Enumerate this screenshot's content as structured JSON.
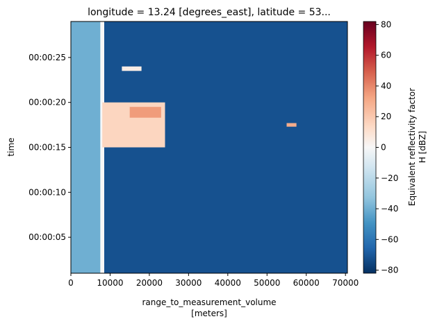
{
  "chart_data": {
    "type": "heatmap",
    "title": "longitude = 13.24 [degrees_east], latitude = 53...",
    "xlabel": "range_to_measurement_volume",
    "xlabel_units": "[meters]",
    "ylabel": "time",
    "xlim": [
      0,
      70500
    ],
    "ylim": [
      "00:00:01",
      "00:00:29"
    ],
    "x_ticks": [
      0,
      10000,
      20000,
      30000,
      40000,
      50000,
      60000,
      70000
    ],
    "y_ticks": [
      "00:00:05",
      "00:00:10",
      "00:00:15",
      "00:00:20",
      "00:00:25"
    ],
    "colorbar": {
      "label_line1": "Equivalent reflectivity factor",
      "label_line2": "H [dBZ]",
      "colormap": "RdBu_r",
      "range": [
        -82,
        82
      ],
      "ticks": [
        -80,
        -60,
        -40,
        -20,
        0,
        20,
        40,
        60,
        80
      ]
    },
    "regions": [
      {
        "x": [
          0,
          8000
        ],
        "t": [
          "00:00:01",
          "00:00:29"
        ],
        "dBZ": -40
      },
      {
        "x": [
          8000,
          70500
        ],
        "t": [
          "00:00:01",
          "00:00:29"
        ],
        "dBZ": -72
      },
      {
        "x": [
          7500,
          8500
        ],
        "t": [
          "00:00:01",
          "00:00:29"
        ],
        "dBZ": 0
      },
      {
        "x": [
          8000,
          24000
        ],
        "t": [
          "00:00:15",
          "00:00:20"
        ],
        "dBZ": 15
      },
      {
        "x": [
          15000,
          23000
        ],
        "t": [
          "00:00:18.3",
          "00:00:19.5"
        ],
        "dBZ": 35
      },
      {
        "x": [
          55000,
          57500
        ],
        "t": [
          "00:00:17.3",
          "00:00:17.7"
        ],
        "dBZ": 30
      },
      {
        "x": [
          13000,
          18000
        ],
        "t": [
          "00:00:23.5",
          "00:00:24.0"
        ],
        "dBZ": 5
      }
    ]
  }
}
